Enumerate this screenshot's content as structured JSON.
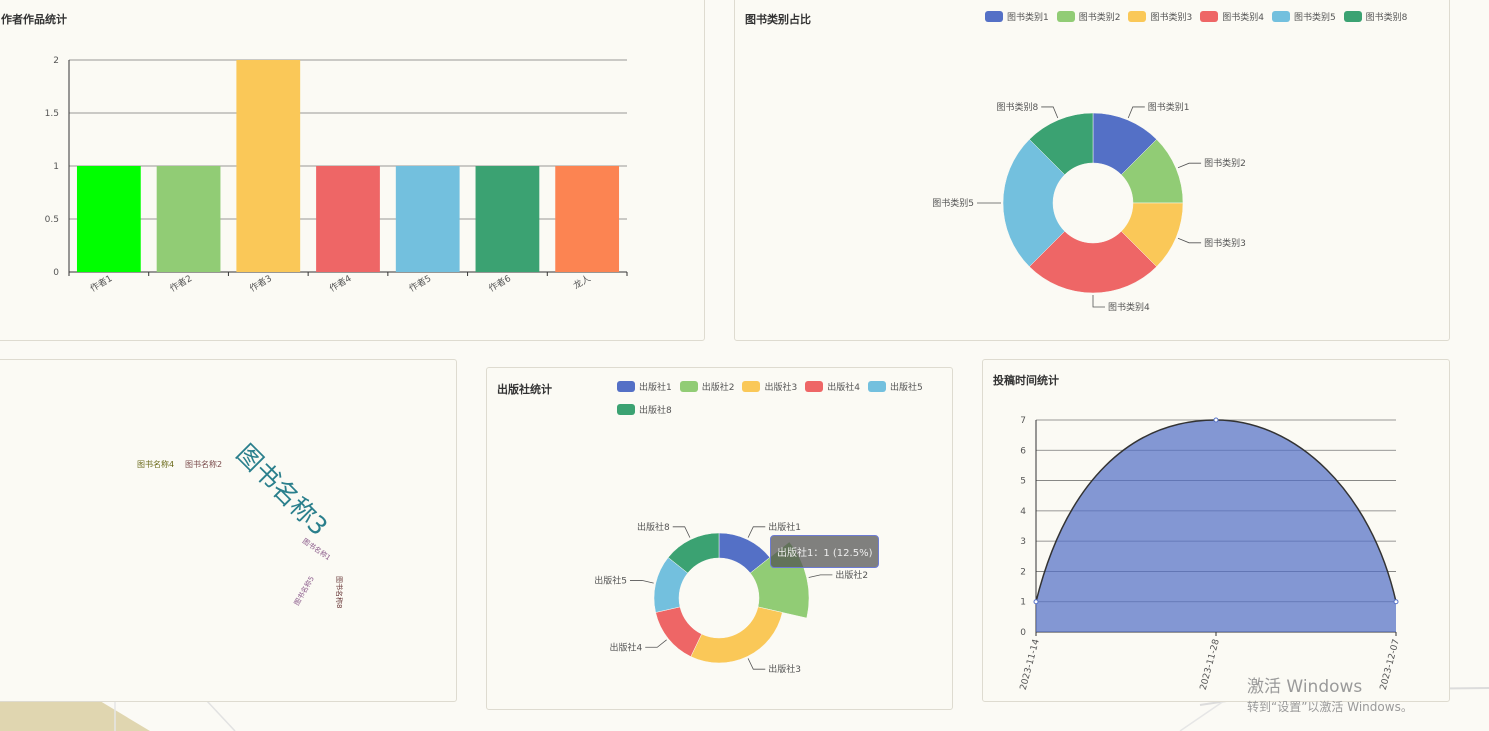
{
  "chart_data": [
    {
      "type": "bar",
      "title": "作者作品统计",
      "categories": [
        "作者1",
        "作者2",
        "作者3",
        "作者4",
        "作者5",
        "作者6",
        "龙人"
      ],
      "values": [
        1,
        1,
        2,
        1,
        1,
        1,
        1
      ],
      "colors": [
        "#00ff00",
        "#91cc75",
        "#fac858",
        "#ee6666",
        "#73c0de",
        "#3ba272",
        "#fc8452"
      ],
      "ylim": [
        0,
        2
      ],
      "yticks": [
        "0",
        "0.5",
        "1",
        "1.5",
        "2"
      ],
      "grid": true
    },
    {
      "type": "pie",
      "title": "图书类别占比",
      "labels": [
        "图书类别1",
        "图书类别2",
        "图书类别3",
        "图书类别4",
        "图书类别5",
        "图书类别8"
      ],
      "values": [
        1,
        1,
        1,
        2,
        2,
        1
      ],
      "colors": [
        "#5470c6",
        "#91cc75",
        "#fac858",
        "#ee6666",
        "#73c0de",
        "#3ba272"
      ],
      "donut": true,
      "legend": "top-right"
    },
    {
      "type": "wordcloud",
      "words": [
        "图书名称3",
        "图书名称4",
        "图书名称2",
        "图书名称1",
        "图书名称5",
        "图书名称8"
      ]
    },
    {
      "type": "pie",
      "title": "出版社统计",
      "labels": [
        "出版社1",
        "出版社2",
        "出版社3",
        "出版社4",
        "出版社5",
        "出版社8"
      ],
      "values": [
        1,
        1,
        2,
        1,
        1,
        1
      ],
      "colors": [
        "#5470c6",
        "#91cc75",
        "#fac858",
        "#ee6666",
        "#73c0de",
        "#3ba272"
      ],
      "donut": true,
      "rose": true,
      "legend": "top",
      "tooltip": "出版社1：1 (12.5%)"
    },
    {
      "type": "area",
      "title": "投稿时间统计",
      "x": [
        "2023-11-14",
        "2023-11-28",
        "2023-12-07"
      ],
      "values": [
        1,
        7,
        1
      ],
      "ylim": [
        0,
        7
      ],
      "yticks": [
        "0",
        "1",
        "2",
        "3",
        "4",
        "5",
        "6",
        "7"
      ],
      "color": "#5470c6",
      "smooth": true,
      "grid": true
    }
  ],
  "watermark": {
    "line1": "激活 Windows",
    "line2": "转到“设置”以激活 Windows。"
  }
}
